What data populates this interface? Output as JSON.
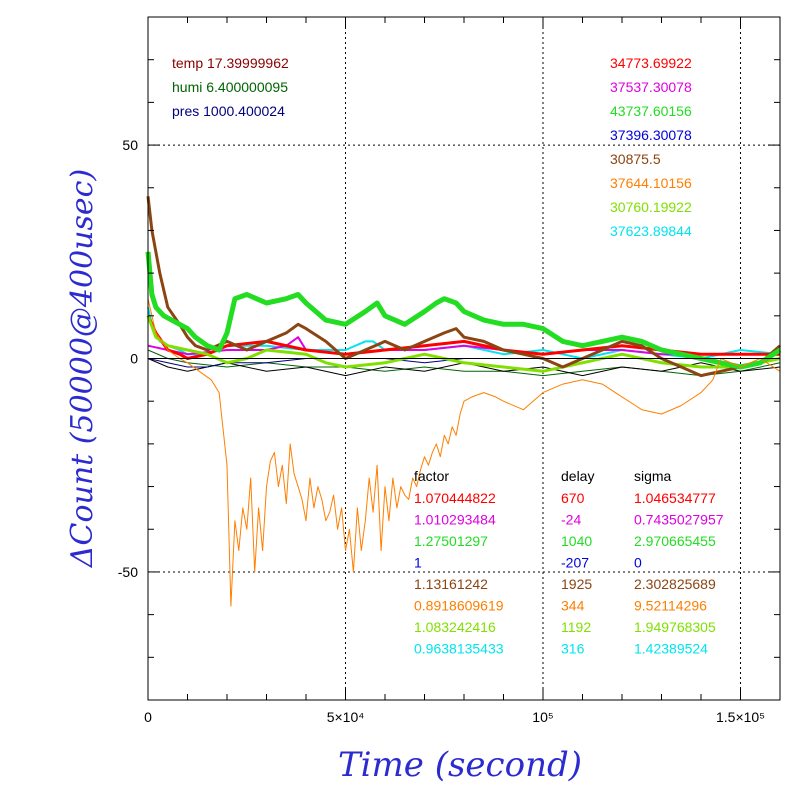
{
  "chart_data": {
    "type": "line",
    "xlabel": "Time (second)",
    "ylabel": "ΔCount (50000@400usec)",
    "xlim": [
      0,
      160000
    ],
    "ylim": [
      -80,
      80
    ],
    "x_ticks": [
      {
        "value": 0,
        "label": "0"
      },
      {
        "value": 50000,
        "label": "5×10⁴"
      },
      {
        "value": 100000,
        "label": "10⁵"
      },
      {
        "value": 150000,
        "label": "1.5×10⁵"
      }
    ],
    "y_ticks": [
      {
        "value": 50,
        "label": "50"
      },
      {
        "value": 0,
        "label": "0"
      },
      {
        "value": -50,
        "label": "-50"
      }
    ],
    "env": [
      {
        "text": "temp 17.39999962",
        "color": "#8b0000"
      },
      {
        "text": "humi 6.400000095",
        "color": "#006400"
      },
      {
        "text": "pres 1000.400024",
        "color": "#000080"
      }
    ],
    "legend_values": [
      {
        "text": "34773.69922",
        "color": "#ff0000"
      },
      {
        "text": "37537.30078",
        "color": "#e000e0"
      },
      {
        "text": "43737.60156",
        "color": "#22dd22"
      },
      {
        "text": "37396.30078",
        "color": "#0000dd"
      },
      {
        "text": "30875.5",
        "color": "#8b4513"
      },
      {
        "text": "37644.10156",
        "color": "#ff7f00"
      },
      {
        "text": "30760.19922",
        "color": "#80e000"
      },
      {
        "text": "37623.89844",
        "color": "#00e5ee"
      }
    ],
    "table": {
      "headers": [
        "factor",
        "delay",
        "sigma"
      ],
      "rows": [
        {
          "color": "#ff0000",
          "factor": "1.070444822",
          "delay": "670",
          "sigma": "1.046534777"
        },
        {
          "color": "#e000e0",
          "factor": "1.010293484",
          "delay": "-24",
          "sigma": "0.7435027957"
        },
        {
          "color": "#22dd22",
          "factor": "1.27501297",
          "delay": "1040",
          "sigma": "2.970665455"
        },
        {
          "color": "#0000dd",
          "factor": "1",
          "delay": "-207",
          "sigma": "0"
        },
        {
          "color": "#8b4513",
          "factor": "1.13161242",
          "delay": "1925",
          "sigma": "2.302825689"
        },
        {
          "color": "#ff7f00",
          "factor": "0.8918609619",
          "delay": "344",
          "sigma": "9.52114296"
        },
        {
          "color": "#80e000",
          "factor": "1.083242416",
          "delay": "1192",
          "sigma": "1.949768305"
        },
        {
          "color": "#00e5ee",
          "factor": "0.9638135433",
          "delay": "316",
          "sigma": "1.42389524"
        }
      ]
    },
    "series": [
      {
        "color": "#006400",
        "width": 1,
        "x": [
          0,
          5000,
          10000,
          20000,
          30000,
          40000,
          50000,
          60000,
          70000,
          80000,
          90000,
          100000,
          110000,
          120000,
          130000,
          140000,
          150000,
          160000
        ],
        "y": [
          2,
          0,
          -1,
          -2,
          -1,
          -2,
          -2,
          -3,
          -2,
          -3,
          -3,
          -4,
          -3,
          -2,
          -3,
          -4,
          -3,
          -1
        ]
      },
      {
        "color": "#000000",
        "width": 1,
        "x": [
          0,
          5000,
          10000,
          20000,
          30000,
          40000,
          50000,
          60000,
          70000,
          80000,
          90000,
          100000,
          110000,
          120000,
          130000,
          140000,
          150000,
          160000
        ],
        "y": [
          0,
          -2,
          -3,
          -1,
          -3,
          -2,
          -4,
          -2,
          -3,
          -1,
          -3,
          -2,
          -4,
          -2,
          -3,
          -1,
          -3,
          -2
        ]
      },
      {
        "color": "#000080",
        "width": 1,
        "x": [
          0,
          5000,
          10000,
          15000,
          20000,
          30000,
          40000,
          50000,
          60000,
          70000,
          80000,
          90000,
          100000,
          110000,
          120000,
          130000,
          140000,
          150000,
          160000
        ],
        "y": [
          0,
          -1,
          -2,
          -2,
          -1,
          -1,
          0,
          0,
          0,
          -1,
          0,
          0,
          0,
          0,
          0,
          0,
          0,
          0,
          0
        ]
      },
      {
        "color": "#00e5ee",
        "width": 2,
        "x": [
          0,
          1000,
          3000,
          5000,
          8000,
          10000,
          15000,
          20000,
          30000,
          40000,
          50000,
          55000,
          57000,
          60000,
          70000,
          80000,
          90000,
          100000,
          110000,
          120000,
          130000,
          140000,
          150000,
          160000
        ],
        "y": [
          12,
          8,
          4,
          3,
          2,
          1,
          1,
          3,
          3,
          2,
          2,
          4,
          4,
          2,
          2,
          3,
          1,
          2,
          0,
          2,
          1,
          0,
          2,
          1
        ]
      },
      {
        "color": "#e000e0",
        "width": 2,
        "x": [
          0,
          5000,
          10000,
          20000,
          30000,
          35000,
          38000,
          40000,
          50000,
          60000,
          70000,
          80000,
          90000,
          100000,
          110000,
          120000,
          130000,
          140000,
          150000,
          160000
        ],
        "y": [
          3,
          2,
          1,
          2,
          2,
          3,
          5,
          2,
          1,
          2,
          2,
          3,
          2,
          1,
          2,
          2,
          1,
          1,
          1,
          1
        ]
      },
      {
        "color": "#ff0000",
        "width": 3,
        "x": [
          0,
          2000,
          5000,
          8000,
          10000,
          15000,
          20000,
          30000,
          40000,
          50000,
          60000,
          70000,
          80000,
          90000,
          100000,
          110000,
          120000,
          130000,
          140000,
          150000,
          160000
        ],
        "y": [
          10,
          6,
          2,
          1,
          0,
          1,
          3,
          4,
          2,
          1,
          2,
          3,
          4,
          2,
          1,
          2,
          3,
          2,
          1,
          1,
          1
        ]
      },
      {
        "color": "#80e000",
        "width": 3,
        "x": [
          0,
          2000,
          5000,
          10000,
          15000,
          20000,
          25000,
          30000,
          40000,
          45000,
          50000,
          60000,
          70000,
          80000,
          90000,
          100000,
          110000,
          120000,
          130000,
          140000,
          150000,
          160000
        ],
        "y": [
          10,
          5,
          3,
          2,
          1,
          -1,
          0,
          2,
          1,
          -1,
          -2,
          -1,
          1,
          -1,
          -2,
          -3,
          -1,
          1,
          -1,
          -2,
          -2,
          0
        ]
      },
      {
        "color": "#8b4513",
        "width": 3,
        "x": [
          0,
          1000,
          3000,
          5000,
          8000,
          10000,
          12000,
          15000,
          20000,
          25000,
          30000,
          35000,
          38000,
          40000,
          45000,
          50000,
          55000,
          60000,
          65000,
          70000,
          75000,
          78000,
          80000,
          85000,
          90000,
          95000,
          100000,
          105000,
          110000,
          115000,
          120000,
          125000,
          130000,
          135000,
          140000,
          145000,
          150000,
          155000,
          160000
        ],
        "y": [
          38,
          30,
          20,
          12,
          8,
          5,
          3,
          2,
          4,
          2,
          4,
          6,
          8,
          7,
          4,
          0,
          2,
          4,
          2,
          4,
          6,
          7,
          5,
          4,
          2,
          1,
          0,
          -2,
          0,
          2,
          4,
          3,
          0,
          -2,
          -4,
          -3,
          -2,
          -1,
          3
        ]
      },
      {
        "color": "#22dd22",
        "width": 5,
        "x": [
          0,
          1000,
          2000,
          4000,
          6000,
          8000,
          10000,
          12000,
          15000,
          18000,
          20000,
          22000,
          25000,
          30000,
          35000,
          38000,
          40000,
          45000,
          50000,
          55000,
          58000,
          60000,
          65000,
          70000,
          73000,
          75000,
          78000,
          80000,
          85000,
          90000,
          95000,
          100000,
          105000,
          110000,
          115000,
          120000,
          125000,
          130000,
          135000,
          140000,
          145000,
          150000,
          155000,
          160000
        ],
        "y": [
          25,
          15,
          12,
          10,
          9,
          8,
          7,
          5,
          3,
          2,
          6,
          14,
          15,
          13,
          14,
          15,
          13,
          9,
          8,
          11,
          13,
          10,
          8,
          11,
          13,
          14,
          13,
          11,
          9,
          8,
          8,
          7,
          4,
          3,
          4,
          5,
          4,
          2,
          1,
          0,
          -1,
          -2,
          -1,
          2
        ]
      },
      {
        "color": "#ff7f00",
        "width": 1,
        "x": [
          0,
          2000,
          5000,
          8000,
          10000,
          13000,
          16000,
          18000,
          20000,
          21000,
          22000,
          23000,
          24000,
          25000,
          26000,
          27000,
          28000,
          29000,
          30000,
          31000,
          32000,
          33000,
          34000,
          35000,
          36000,
          37000,
          38000,
          39000,
          40000,
          41000,
          42000,
          43000,
          44000,
          45000,
          46000,
          47000,
          48000,
          49000,
          50000,
          51000,
          52000,
          53000,
          54000,
          55000,
          56000,
          57000,
          58000,
          59000,
          60000,
          61000,
          62000,
          63000,
          64000,
          65000,
          66000,
          67000,
          68000,
          69000,
          70000,
          71000,
          72000,
          73000,
          74000,
          75000,
          76000,
          77000,
          78000,
          79000,
          80000,
          82000,
          85000,
          88000,
          90000,
          95000,
          100000,
          105000,
          110000,
          115000,
          120000,
          125000,
          130000,
          135000,
          140000,
          143000,
          145000,
          150000,
          155000,
          160000
        ],
        "y": [
          14,
          6,
          2,
          0,
          -1,
          -3,
          -5,
          -8,
          -25,
          -58,
          -38,
          -45,
          -35,
          -40,
          -28,
          -50,
          -35,
          -45,
          -30,
          -24,
          -22,
          -30,
          -25,
          -34,
          -20,
          -27,
          -30,
          -33,
          -38,
          -28,
          -35,
          -30,
          -33,
          -38,
          -36,
          -32,
          -40,
          -35,
          -45,
          -40,
          -50,
          -35,
          -45,
          -38,
          -28,
          -36,
          -25,
          -45,
          -30,
          -38,
          -28,
          -35,
          -30,
          -32,
          -33,
          -28,
          -30,
          -26,
          -23,
          -25,
          -22,
          -20,
          -23,
          -18,
          -20,
          -16,
          -18,
          -13,
          -10,
          -9,
          -8,
          -9,
          -10,
          -12,
          -8,
          -6,
          -5,
          -6,
          -9,
          -12,
          -13,
          -11,
          -8,
          -5,
          0,
          -2,
          0,
          -3
        ]
      }
    ]
  }
}
